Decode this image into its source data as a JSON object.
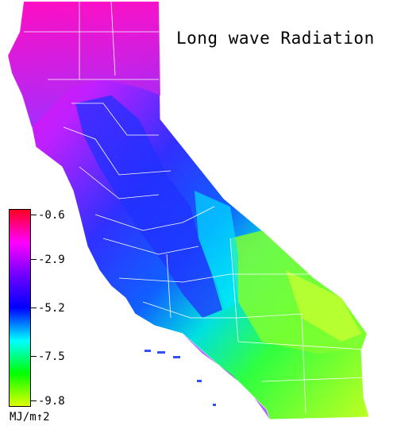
{
  "map": {
    "title": "Long wave Radiation",
    "colors": {
      "high": "#ff0033",
      "mid_high": "#ff00ff",
      "mid": "#8a2be2",
      "mid_low": "#0020ff",
      "low": "#00ffff",
      "lower": "#00ff00",
      "lowest": "#e0ff00"
    }
  },
  "legend": {
    "ticks": [
      "-0.6",
      "-2.9",
      "-5.2",
      "-7.5",
      "-9.8"
    ],
    "units": "MJ/m↑2",
    "gradient": [
      "#ff0020",
      "#ff00ff",
      "#7000ff",
      "#0000ff",
      "#00ffff",
      "#00ff00",
      "#e0ff00"
    ]
  }
}
